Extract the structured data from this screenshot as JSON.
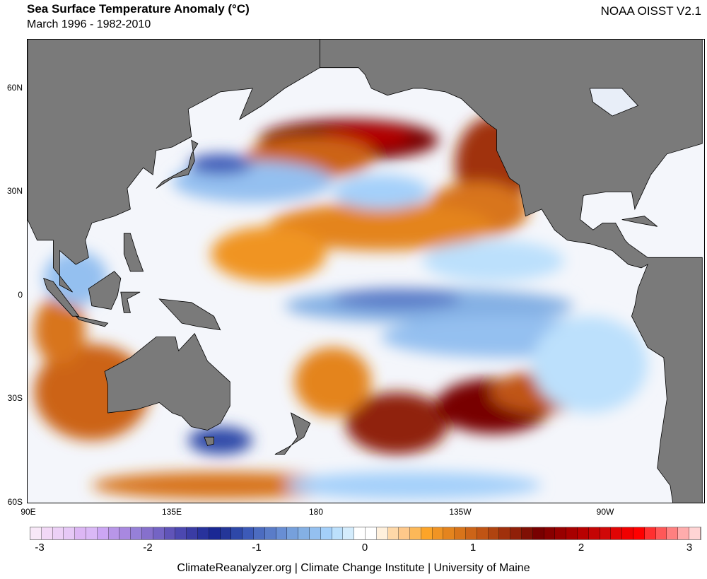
{
  "header": {
    "title": "Sea Surface Temperature Anomaly (°C)",
    "subtitle": "March 1996 - 1982-2010",
    "source": "NOAA OISST V2.1"
  },
  "map": {
    "lat_labels": [
      "60N",
      "30N",
      "0",
      "30S",
      "60S"
    ],
    "lon_labels": [
      "90E",
      "135E",
      "180",
      "135W",
      "90W"
    ],
    "ocean_color": "#f4f6fb",
    "land_color": "#7a7a7a"
  },
  "colorbar": {
    "min": -3,
    "max": 3,
    "step": 0.1,
    "tick_labels": [
      "-3",
      "-2",
      "-1",
      "0",
      "1",
      "2",
      "3"
    ],
    "colors": [
      "#f8e8f8",
      "#f2d8f6",
      "#ecd0f6",
      "#e6c8f6",
      "#dcb6f4",
      "#dab8f6",
      "#cca6f4",
      "#b896e8",
      "#a888e0",
      "#9680d8",
      "#8670cc",
      "#7464c4",
      "#6054b8",
      "#4c48b0",
      "#3a3ca4",
      "#28329c",
      "#1a2894",
      "#243698",
      "#2e48a8",
      "#3c5ab8",
      "#4c6cc0",
      "#5a7cc8",
      "#688ed4",
      "#76a0dc",
      "#84b0e4",
      "#94c0f0",
      "#a4d0fa",
      "#bce0fc",
      "#d4ecfc",
      "#ffffff",
      "#ffffff",
      "#fff0dc",
      "#fed8a8",
      "#fec88a",
      "#fcb858",
      "#fca428",
      "#f09424",
      "#e4841e",
      "#d8741a",
      "#cc6418",
      "#c05414",
      "#b04410",
      "#a0300c",
      "#902008",
      "#801004",
      "#780000",
      "#880000",
      "#980000",
      "#a80000",
      "#b80000",
      "#c40404",
      "#d00808",
      "#e00404",
      "#f00000",
      "#ff0000",
      "#ff3030",
      "#ff5858",
      "#ff8080",
      "#ffacac",
      "#ffd4d4"
    ]
  },
  "footer": {
    "credit": "ClimateReanalyzer.org | Climate Change Institute | University of Maine"
  }
}
